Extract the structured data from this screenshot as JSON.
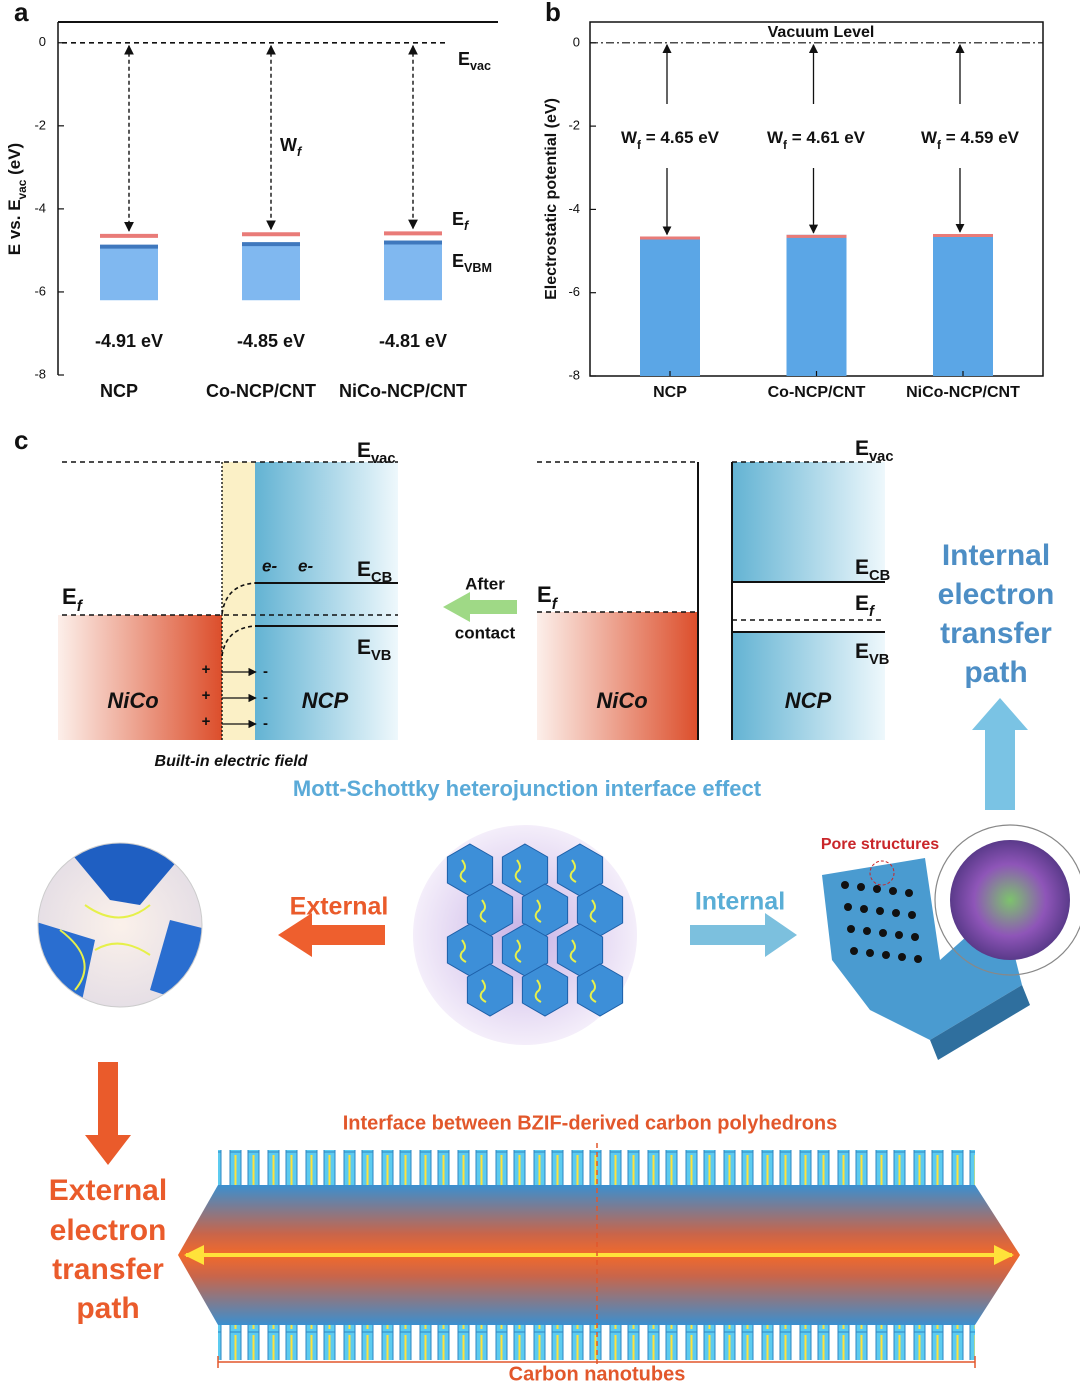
{
  "panel_labels": [
    "a",
    "b",
    "c"
  ],
  "chart_data": [
    {
      "type": "energy-level",
      "ylabel": [
        "E vs. E",
        "vac",
        " (eV)"
      ],
      "categories": [
        "NCP",
        "Co-NCP/CNT",
        "NiCo-NCP/CNT"
      ],
      "series": [
        {
          "color": "#e97b78",
          "values": [
            -4.65,
            -4.61,
            -4.59
          ]
        },
        {
          "color": "#3f78bd",
          "values": [
            -4.91,
            -4.85,
            -4.81
          ],
          "value_labels": [
            "-4.91 eV",
            "-4.85 eV",
            "-4.81 eV"
          ]
        }
      ],
      "ylim": [
        -8,
        0.5
      ],
      "yticks": [
        -8,
        -6,
        -4,
        -2,
        0
      ],
      "annotations": {
        "vacuum": [
          "E",
          "vac"
        ],
        "work_function": [
          "W",
          "f"
        ],
        "fermi": [
          "E",
          "f"
        ],
        "vbm": [
          "E",
          "VBM"
        ]
      }
    },
    {
      "type": "bar",
      "ylabel": "Electrostatic potential (eV)",
      "categories": [
        "NCP",
        "Co-NCP/CNT",
        "NiCo-NCP/CNT"
      ],
      "values": [
        -4.65,
        -4.61,
        -4.59
      ],
      "color": "#5ba6e6",
      "top_color": "#e97b78",
      "ylim": [
        -8,
        0.5
      ],
      "yticks": [
        -8,
        -6,
        -4,
        -2,
        0
      ],
      "vacuum_label": "Vacuum Level",
      "annotations": [
        [
          "W",
          "f",
          " = 4.65 eV"
        ],
        [
          "W",
          "f",
          " = 4.61 eV"
        ],
        [
          "W",
          "f",
          " = 4.59 eV"
        ]
      ]
    }
  ],
  "panel_c": {
    "left_diagram": {
      "vacuum": [
        "E",
        "vac"
      ],
      "electrons": [
        "e-",
        "e-"
      ],
      "conduction_band": [
        "E",
        "CB"
      ],
      "fermi": [
        "E",
        "f"
      ],
      "valence_band": [
        "E",
        "VB"
      ],
      "plus_signs": [
        "+",
        "+",
        "+"
      ],
      "minus_signs": [
        "-",
        "-",
        "-"
      ],
      "metal": "NiCo",
      "semiconductor": "NCP",
      "caption": "Built-in electric field"
    },
    "contact_arrow": [
      "After",
      "contact"
    ],
    "right_diagram": {
      "vacuum": [
        "E",
        "vac"
      ],
      "fermi_metal": [
        "E",
        "f"
      ],
      "conduction_band": [
        "E",
        "CB"
      ],
      "fermi": [
        "E",
        "f"
      ],
      "valence_band": [
        "E",
        "VB"
      ],
      "metal": "NiCo",
      "semiconductor": "NCP"
    },
    "internal_path": [
      "Internal",
      "electron",
      "transfer",
      "path"
    ],
    "interface_effect": "Mott-Schottky heterojunction interface effect",
    "pore_label": "Pore structures",
    "external_arrow": "External",
    "internal_arrow": "Internal",
    "external_path": [
      "External",
      "electron",
      "transfer",
      "path"
    ],
    "interface_label": "Interface between BZIF-derived carbon polyhedrons",
    "nanotube_label": "Carbon nanotubes"
  }
}
